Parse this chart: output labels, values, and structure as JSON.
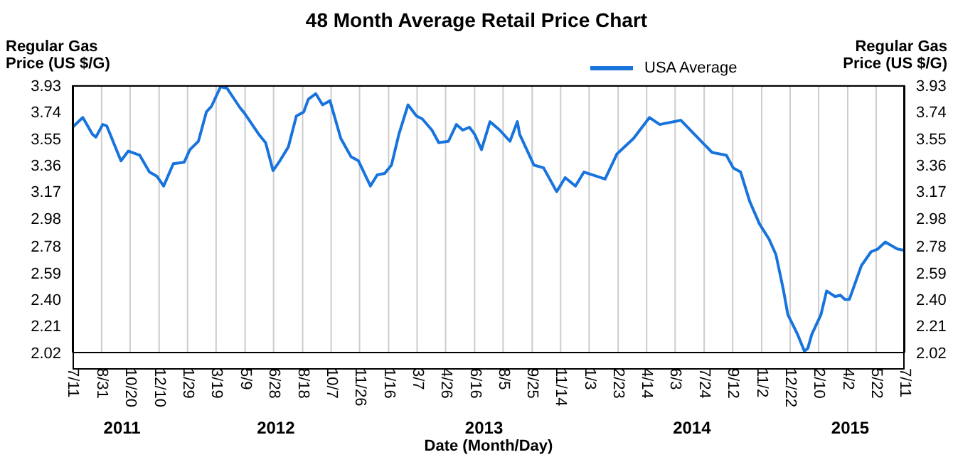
{
  "chart_data": {
    "type": "line",
    "title": "48 Month Average Retail Price Chart",
    "xlabel": "Date (Month/Day)",
    "ylabel": "Regular Gas Price (US $/G)",
    "y2label": "Regular Gas Price (US $/G)",
    "x": [
      "2011-07-11",
      "2011-07-29",
      "2011-08-15",
      "2011-08-21",
      "2011-09-02",
      "2011-09-09",
      "2011-10-04",
      "2011-10-17",
      "2011-11-06",
      "2011-11-23",
      "2011-12-06",
      "2011-12-18",
      "2012-01-04",
      "2012-01-23",
      "2012-02-02",
      "2012-02-17",
      "2012-03-02",
      "2012-03-11",
      "2012-03-27",
      "2012-04-07",
      "2012-04-30",
      "2012-05-08",
      "2012-06-02",
      "2012-06-14",
      "2012-06-27",
      "2012-07-09",
      "2012-07-24",
      "2012-08-07",
      "2012-08-20",
      "2012-08-28",
      "2012-09-10",
      "2012-09-22",
      "2012-10-05",
      "2012-10-24",
      "2012-11-11",
      "2012-11-24",
      "2012-12-15",
      "2012-12-27",
      "2013-01-09",
      "2013-01-21",
      "2013-02-03",
      "2013-02-19",
      "2013-03-06",
      "2013-03-16",
      "2013-04-02",
      "2013-04-14",
      "2013-05-01",
      "2013-05-15",
      "2013-05-26",
      "2013-06-07",
      "2013-06-16",
      "2013-06-28",
      "2013-07-13",
      "2013-07-30",
      "2013-08-17",
      "2013-08-30",
      "2013-09-03",
      "2013-09-28",
      "2013-10-15",
      "2013-11-07",
      "2013-11-22",
      "2013-12-10",
      "2013-12-25",
      "2014-01-31",
      "2014-02-21",
      "2014-03-22",
      "2014-04-19",
      "2014-05-07",
      "2014-06-13",
      "2014-07-21",
      "2014-08-07",
      "2014-09-01",
      "2014-09-13",
      "2014-09-26",
      "2014-10-12",
      "2014-10-29",
      "2014-11-15",
      "2014-11-27",
      "2014-12-10",
      "2014-12-18",
      "2015-01-04",
      "2015-01-16",
      "2015-01-22",
      "2015-01-29",
      "2015-02-14",
      "2015-02-24",
      "2015-03-11",
      "2015-03-20",
      "2015-03-28",
      "2015-04-05",
      "2015-04-26",
      "2015-05-13",
      "2015-05-25",
      "2015-06-07",
      "2015-06-28",
      "2015-07-11"
    ],
    "series": [
      {
        "name": "USA Average",
        "color": "#1874dc",
        "values": [
          3.63,
          3.7,
          3.58,
          3.56,
          3.65,
          3.64,
          3.39,
          3.46,
          3.43,
          3.31,
          3.28,
          3.21,
          3.37,
          3.38,
          3.47,
          3.53,
          3.74,
          3.78,
          3.92,
          3.91,
          3.77,
          3.73,
          3.58,
          3.52,
          3.32,
          3.39,
          3.49,
          3.71,
          3.74,
          3.83,
          3.87,
          3.79,
          3.82,
          3.55,
          3.42,
          3.39,
          3.21,
          3.29,
          3.3,
          3.36,
          3.58,
          3.79,
          3.71,
          3.69,
          3.61,
          3.52,
          3.53,
          3.65,
          3.61,
          3.63,
          3.58,
          3.47,
          3.67,
          3.61,
          3.53,
          3.67,
          3.58,
          3.36,
          3.34,
          3.17,
          3.27,
          3.21,
          3.31,
          3.26,
          3.44,
          3.55,
          3.7,
          3.65,
          3.68,
          3.52,
          3.45,
          3.43,
          3.34,
          3.31,
          3.1,
          2.94,
          2.83,
          2.72,
          2.47,
          2.29,
          2.15,
          2.03,
          2.05,
          2.15,
          2.29,
          2.46,
          2.42,
          2.43,
          2.4,
          2.4,
          2.64,
          2.74,
          2.76,
          2.81,
          2.76,
          2.75
        ]
      }
    ],
    "xlim": [
      "2011-07-11",
      "2015-07-11"
    ],
    "xticks": [
      {
        "value": "2011-07-11",
        "label": "7/11"
      },
      {
        "value": "2011-08-31",
        "label": "8/31"
      },
      {
        "value": "2011-10-20",
        "label": "10/20"
      },
      {
        "value": "2011-12-10",
        "label": "12/10"
      },
      {
        "value": "2012-01-29",
        "label": "1/29"
      },
      {
        "value": "2012-03-19",
        "label": "3/19"
      },
      {
        "value": "2012-05-09",
        "label": "5/9"
      },
      {
        "value": "2012-06-28",
        "label": "6/28"
      },
      {
        "value": "2012-08-18",
        "label": "8/18"
      },
      {
        "value": "2012-10-07",
        "label": "10/7"
      },
      {
        "value": "2012-11-26",
        "label": "11/26"
      },
      {
        "value": "2013-01-16",
        "label": "1/16"
      },
      {
        "value": "2013-03-07",
        "label": "3/7"
      },
      {
        "value": "2013-04-26",
        "label": "4/26"
      },
      {
        "value": "2013-06-16",
        "label": "6/16"
      },
      {
        "value": "2013-08-05",
        "label": "8/5"
      },
      {
        "value": "2013-09-25",
        "label": "9/25"
      },
      {
        "value": "2013-11-14",
        "label": "11/14"
      },
      {
        "value": "2014-01-03",
        "label": "1/3"
      },
      {
        "value": "2014-02-23",
        "label": "2/23"
      },
      {
        "value": "2014-04-14",
        "label": "4/14"
      },
      {
        "value": "2014-06-03",
        "label": "6/3"
      },
      {
        "value": "2014-07-24",
        "label": "7/24"
      },
      {
        "value": "2014-09-12",
        "label": "9/12"
      },
      {
        "value": "2014-11-02",
        "label": "11/2"
      },
      {
        "value": "2014-12-22",
        "label": "12/22"
      },
      {
        "value": "2015-02-10",
        "label": "2/10"
      },
      {
        "value": "2015-04-02",
        "label": "4/2"
      },
      {
        "value": "2015-05-22",
        "label": "5/22"
      },
      {
        "value": "2015-07-11",
        "label": "7/11"
      }
    ],
    "ylim": [
      2.02,
      3.93
    ],
    "yticks": [
      2.02,
      2.21,
      {
        "value": 2.4,
        "label": "2.40"
      },
      2.59,
      2.78,
      2.98,
      3.17,
      3.36,
      3.55,
      3.74,
      3.93
    ],
    "y2lim": [
      2.02,
      3.93
    ],
    "y2ticks": [
      2.02,
      2.21,
      {
        "value": 2.4,
        "label": "2.40"
      },
      2.59,
      2.78,
      2.98,
      3.17,
      3.36,
      3.55,
      3.74,
      3.93
    ],
    "annotations": [
      "2011",
      "2012",
      "2013",
      "2014",
      "2015"
    ],
    "grid": true,
    "legend": "top right",
    "marker": "none",
    "line_style": "solid"
  }
}
